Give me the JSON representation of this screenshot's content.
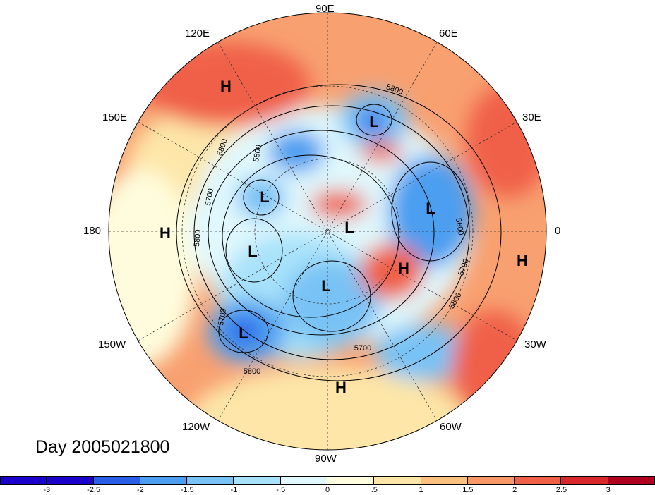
{
  "title": "Day 2005021800",
  "longitude_labels": [
    {
      "text": "90E"
    },
    {
      "text": "120E"
    },
    {
      "text": "60E"
    },
    {
      "text": "150E"
    },
    {
      "text": "30E"
    },
    {
      "text": "180"
    },
    {
      "text": "0"
    },
    {
      "text": "150W"
    },
    {
      "text": "30W"
    },
    {
      "text": "120W"
    },
    {
      "text": "60W"
    },
    {
      "text": "90W"
    }
  ],
  "pressure_centers": [
    {
      "type": "H"
    },
    {
      "type": "L"
    },
    {
      "type": "L"
    },
    {
      "type": "L"
    },
    {
      "type": "L"
    },
    {
      "type": "H"
    },
    {
      "type": "L"
    },
    {
      "type": "L"
    },
    {
      "type": "H"
    },
    {
      "type": "H"
    },
    {
      "type": "L"
    },
    {
      "type": "H"
    }
  ],
  "contour_labels": [
    "5800",
    "5800",
    "5700",
    "5800",
    "5600",
    "5700",
    "5800",
    "5700",
    "5800",
    "5700",
    "5800"
  ],
  "colorbar": {
    "colors": [
      "#1a00c8",
      "#2a5ee8",
      "#4b9ef0",
      "#78c2f5",
      "#a8e2fa",
      "#e0f8fd",
      "#fefcdc",
      "#fde6a8",
      "#fcc080",
      "#f89868",
      "#f06048",
      "#d8282c",
      "#b00020"
    ],
    "ticks": [
      "-3",
      "-2.5",
      "-2",
      "-1.5",
      "-1",
      "-.5",
      "0",
      ".5",
      "1",
      "1.5",
      "2",
      "2.5",
      "3"
    ]
  }
}
